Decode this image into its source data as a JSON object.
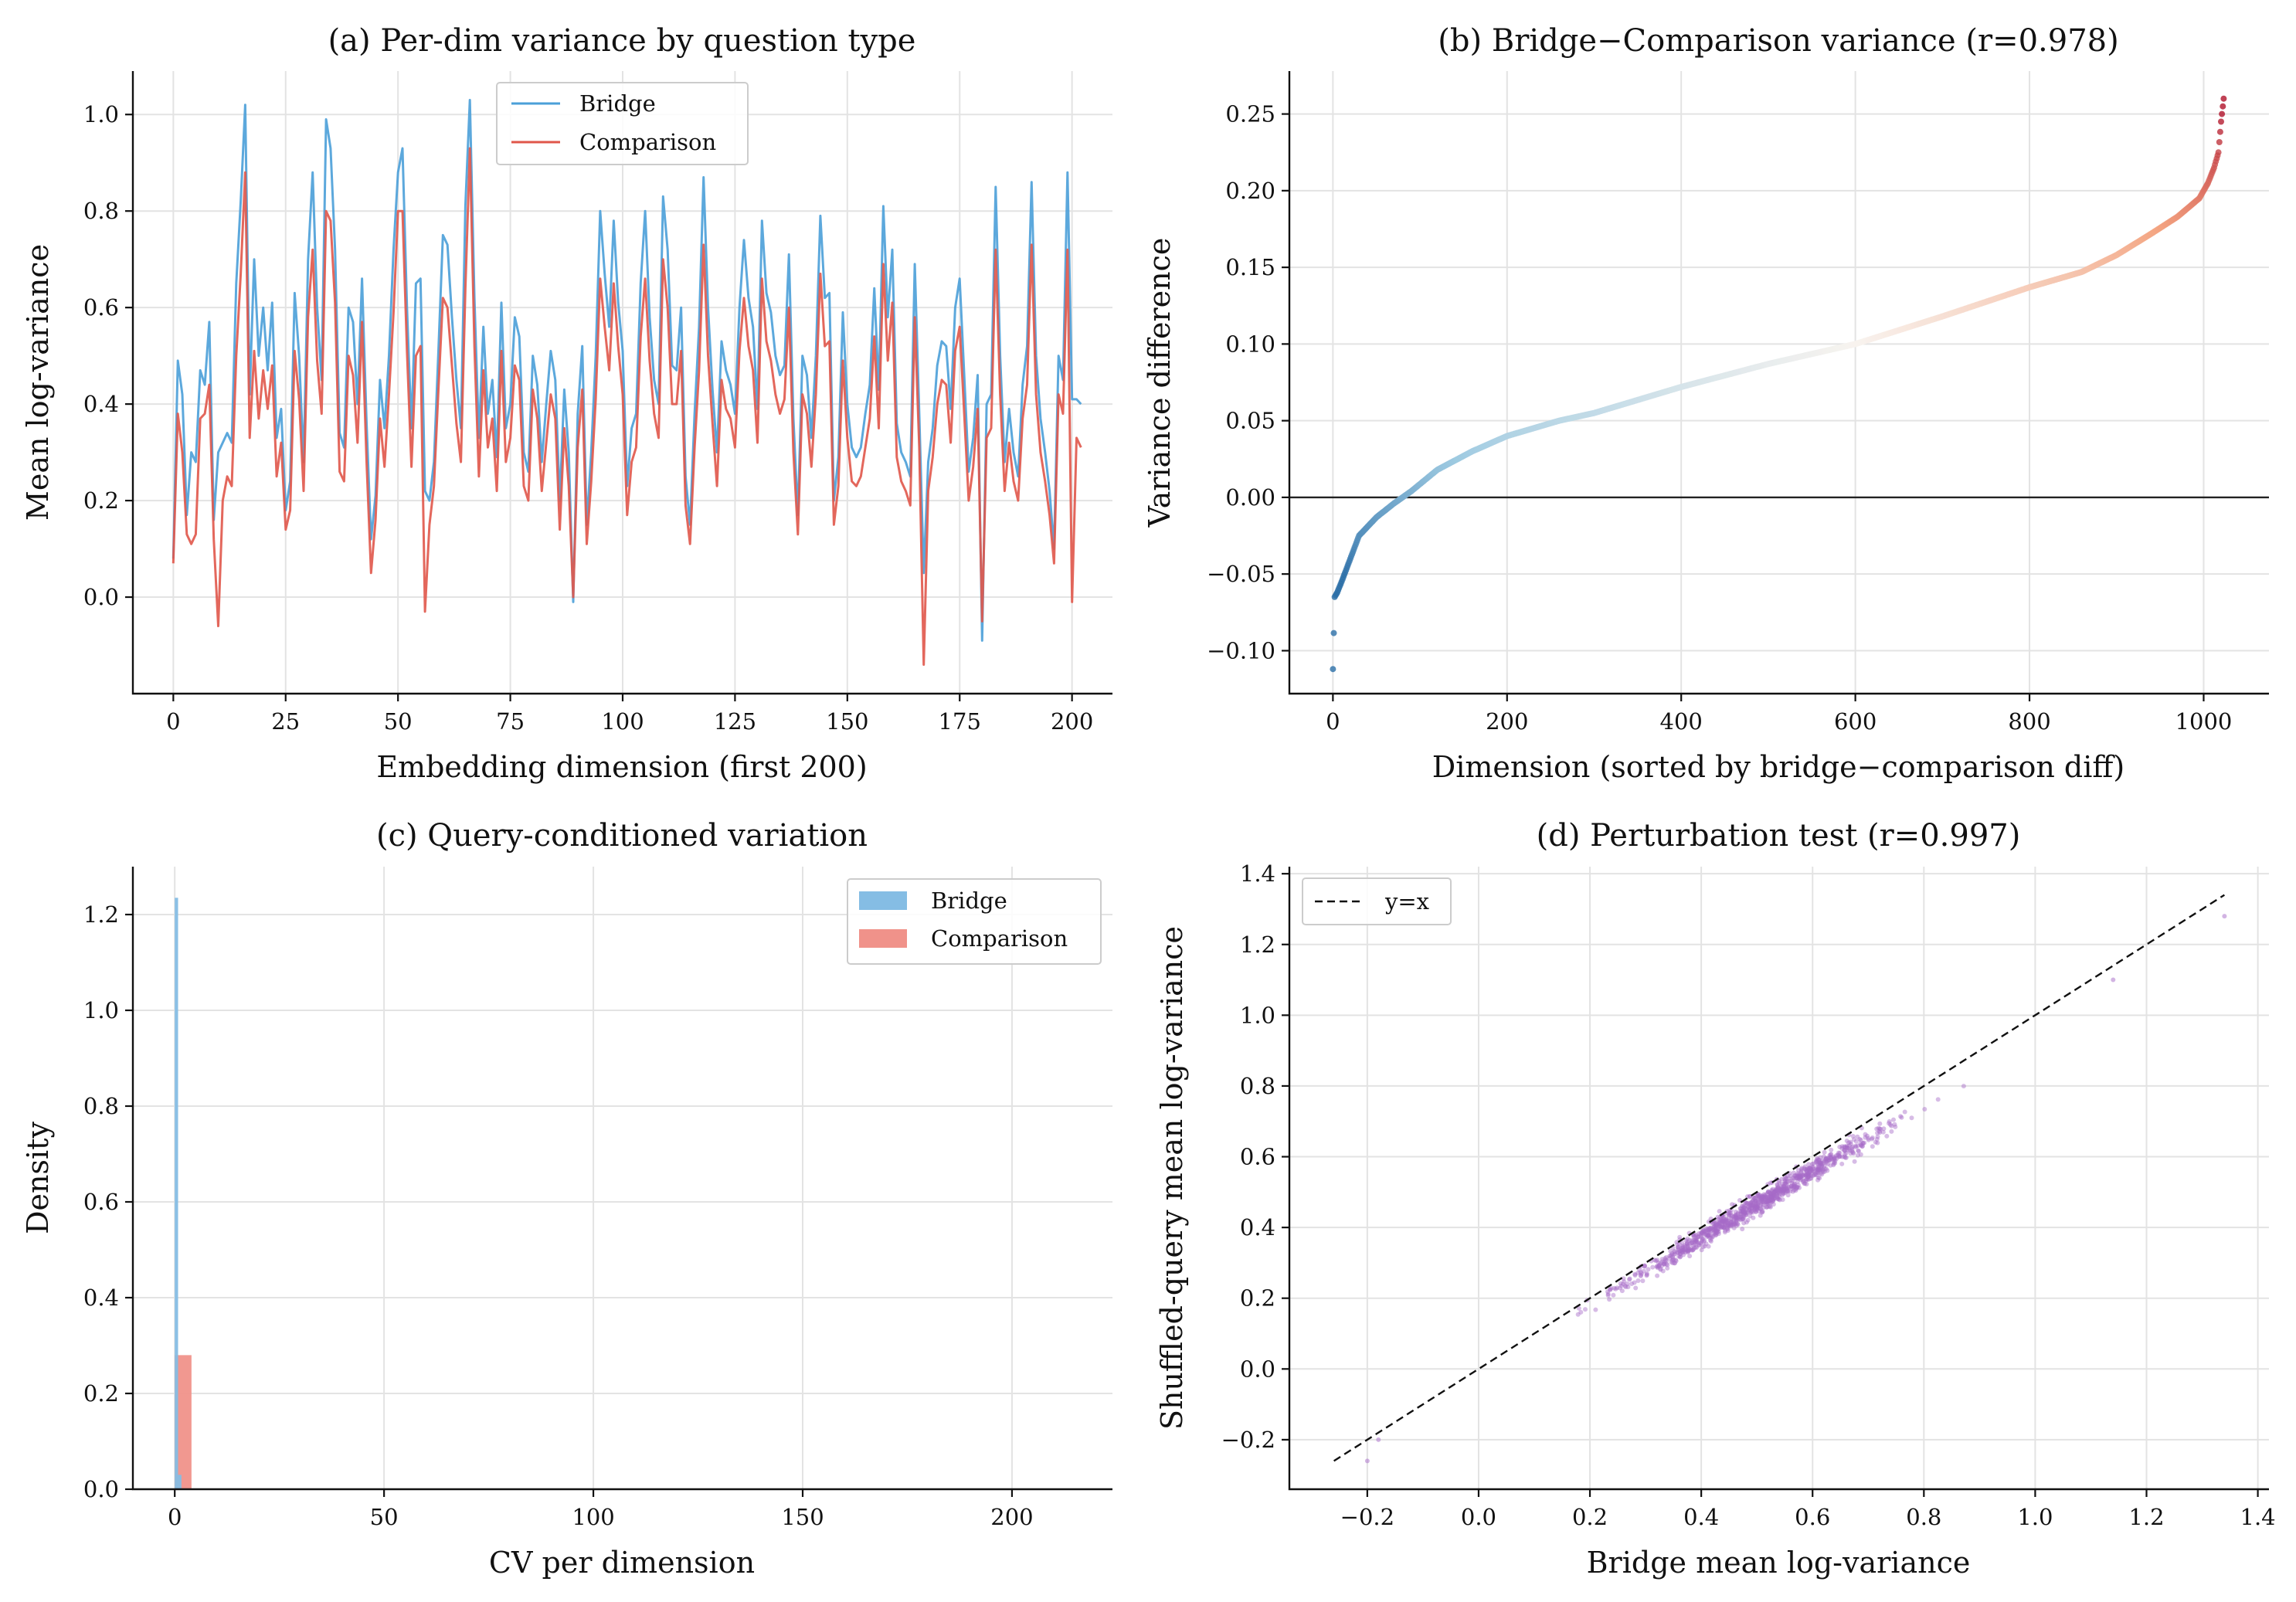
{
  "colors": {
    "bridge": "#4a9fd8",
    "comparison": "#e0564a",
    "bridge_fill": "#85bde4",
    "comparison_fill": "#f0928a",
    "scatter": "#a66ac8",
    "diverging_low": "#2c6fa8",
    "diverging_mid": "#f7f3ef",
    "diverging_high": "#b0132b"
  },
  "chart_data": [
    {
      "id": "a",
      "type": "line",
      "title": "(a) Per-dim variance by question type",
      "xlabel": "Embedding dimension (first 200)",
      "ylabel": "Mean log-variance",
      "xlim": [
        -9,
        209
      ],
      "ylim": [
        -0.2,
        1.09
      ],
      "xticks": [
        "0",
        "25",
        "50",
        "75",
        "100",
        "125",
        "150",
        "175",
        "200"
      ],
      "yticks": [
        "0.0",
        "0.2",
        "0.4",
        "0.6",
        "0.8",
        "1.0"
      ],
      "grid": true,
      "legend": {
        "position": "upper-center",
        "entries": [
          "Bridge",
          "Comparison"
        ]
      },
      "series": [
        {
          "name": "Bridge",
          "values": [
            0.08,
            0.49,
            0.42,
            0.17,
            0.3,
            0.28,
            0.47,
            0.44,
            0.57,
            0.16,
            0.3,
            0.32,
            0.34,
            0.32,
            0.65,
            0.82,
            1.02,
            0.42,
            0.7,
            0.5,
            0.6,
            0.47,
            0.61,
            0.33,
            0.39,
            0.18,
            0.24,
            0.63,
            0.5,
            0.28,
            0.7,
            0.88,
            0.6,
            0.45,
            0.99,
            0.93,
            0.72,
            0.34,
            0.31,
            0.6,
            0.57,
            0.4,
            0.66,
            0.36,
            0.12,
            0.21,
            0.45,
            0.35,
            0.5,
            0.72,
            0.88,
            0.93,
            0.6,
            0.35,
            0.65,
            0.66,
            0.22,
            0.2,
            0.28,
            0.51,
            0.75,
            0.73,
            0.58,
            0.45,
            0.35,
            0.81,
            1.03,
            0.62,
            0.33,
            0.56,
            0.38,
            0.45,
            0.29,
            0.61,
            0.35,
            0.4,
            0.58,
            0.54,
            0.3,
            0.26,
            0.5,
            0.44,
            0.28,
            0.4,
            0.51,
            0.45,
            0.2,
            0.43,
            0.3,
            -0.01,
            0.38,
            0.52,
            0.15,
            0.3,
            0.5,
            0.8,
            0.67,
            0.56,
            0.78,
            0.61,
            0.51,
            0.23,
            0.35,
            0.38,
            0.65,
            0.8,
            0.58,
            0.45,
            0.4,
            0.83,
            0.72,
            0.48,
            0.47,
            0.6,
            0.25,
            0.15,
            0.38,
            0.56,
            0.87,
            0.6,
            0.43,
            0.3,
            0.53,
            0.47,
            0.44,
            0.38,
            0.6,
            0.74,
            0.62,
            0.56,
            0.39,
            0.78,
            0.63,
            0.59,
            0.5,
            0.46,
            0.48,
            0.71,
            0.37,
            0.17,
            0.5,
            0.46,
            0.33,
            0.5,
            0.79,
            0.62,
            0.63,
            0.2,
            0.29,
            0.59,
            0.4,
            0.31,
            0.29,
            0.31,
            0.38,
            0.44,
            0.64,
            0.43,
            0.81,
            0.58,
            0.72,
            0.36,
            0.3,
            0.28,
            0.25,
            0.69,
            0.38,
            0.05,
            0.28,
            0.35,
            0.48,
            0.53,
            0.52,
            0.39,
            0.6,
            0.66,
            0.46,
            0.26,
            0.33,
            0.46,
            -0.09,
            0.4,
            0.42,
            0.85,
            0.5,
            0.28,
            0.39,
            0.3,
            0.25,
            0.44,
            0.52,
            0.86,
            0.5,
            0.37,
            0.3,
            0.22,
            0.1,
            0.5,
            0.45,
            0.88,
            0.41,
            0.41,
            0.4
          ]
        },
        {
          "name": "Comparison",
          "values": [
            0.07,
            0.38,
            0.3,
            0.13,
            0.11,
            0.13,
            0.37,
            0.38,
            0.44,
            0.12,
            -0.06,
            0.2,
            0.25,
            0.23,
            0.5,
            0.67,
            0.88,
            0.33,
            0.51,
            0.37,
            0.47,
            0.39,
            0.48,
            0.25,
            0.32,
            0.14,
            0.18,
            0.51,
            0.41,
            0.22,
            0.58,
            0.72,
            0.49,
            0.38,
            0.8,
            0.78,
            0.61,
            0.26,
            0.24,
            0.5,
            0.46,
            0.32,
            0.57,
            0.28,
            0.05,
            0.16,
            0.37,
            0.27,
            0.42,
            0.59,
            0.8,
            0.8,
            0.51,
            0.27,
            0.5,
            0.52,
            -0.03,
            0.15,
            0.23,
            0.43,
            0.62,
            0.6,
            0.48,
            0.36,
            0.28,
            0.64,
            0.93,
            0.52,
            0.25,
            0.47,
            0.31,
            0.37,
            0.22,
            0.51,
            0.28,
            0.33,
            0.48,
            0.45,
            0.23,
            0.2,
            0.43,
            0.37,
            0.22,
            0.32,
            0.42,
            0.37,
            0.14,
            0.35,
            0.23,
            0.0,
            0.31,
            0.43,
            0.11,
            0.24,
            0.41,
            0.66,
            0.56,
            0.47,
            0.65,
            0.52,
            0.42,
            0.17,
            0.28,
            0.31,
            0.54,
            0.66,
            0.49,
            0.38,
            0.33,
            0.7,
            0.6,
            0.4,
            0.4,
            0.51,
            0.19,
            0.11,
            0.31,
            0.47,
            0.73,
            0.5,
            0.36,
            0.23,
            0.45,
            0.39,
            0.37,
            0.31,
            0.51,
            0.62,
            0.52,
            0.47,
            0.32,
            0.66,
            0.53,
            0.49,
            0.42,
            0.38,
            0.41,
            0.6,
            0.3,
            0.13,
            0.42,
            0.38,
            0.27,
            0.42,
            0.67,
            0.52,
            0.53,
            0.15,
            0.23,
            0.49,
            0.33,
            0.24,
            0.23,
            0.25,
            0.31,
            0.37,
            0.54,
            0.35,
            0.69,
            0.49,
            0.61,
            0.29,
            0.24,
            0.22,
            0.19,
            0.58,
            0.31,
            -0.14,
            0.22,
            0.29,
            0.4,
            0.45,
            0.44,
            0.32,
            0.51,
            0.56,
            0.38,
            0.2,
            0.27,
            0.39,
            -0.05,
            0.33,
            0.35,
            0.72,
            0.42,
            0.22,
            0.32,
            0.24,
            0.2,
            0.37,
            0.44,
            0.73,
            0.42,
            0.3,
            0.24,
            0.17,
            0.07,
            0.42,
            0.38,
            0.72,
            -0.01,
            0.33,
            0.31
          ]
        }
      ]
    },
    {
      "id": "b",
      "type": "scatter",
      "title": "(b) Bridge−Comparison variance  (r=0.978)",
      "xlabel": "Dimension (sorted by bridge−comparison diff)",
      "ylabel": "Variance difference",
      "xlim": [
        -50,
        1075
      ],
      "ylim": [
        -0.128,
        0.278
      ],
      "xticks": [
        "0",
        "200",
        "400",
        "600",
        "800",
        "1000"
      ],
      "yticks": [
        "−0.10",
        "−0.05",
        "0.00",
        "0.05",
        "0.10",
        "0.15",
        "0.20",
        "0.25"
      ],
      "grid": true,
      "zero_line": 0,
      "n_points": 1024,
      "curve_keypoints": {
        "x": [
          0,
          2,
          5,
          10,
          20,
          30,
          50,
          70,
          90,
          120,
          160,
          200,
          260,
          300,
          400,
          500,
          600,
          700,
          800,
          860,
          900,
          940,
          970,
          995,
          1005,
          1012,
          1017,
          1020,
          1023
        ],
        "y": [
          -0.112,
          -0.065,
          -0.062,
          -0.055,
          -0.04,
          -0.025,
          -0.013,
          -0.004,
          0.004,
          0.018,
          0.03,
          0.04,
          0.05,
          0.055,
          0.072,
          0.087,
          0.1,
          0.118,
          0.137,
          0.147,
          0.158,
          0.172,
          0.183,
          0.195,
          0.205,
          0.215,
          0.225,
          0.245,
          0.26
        ]
      },
      "color_scale": {
        "min": -0.05,
        "max": 0.25,
        "colormap": "diverging blue-white-red"
      }
    },
    {
      "id": "c",
      "type": "bar",
      "title": "(c) Query-conditioned variation",
      "xlabel": "CV per dimension",
      "ylabel": "Density",
      "xlim": [
        -10,
        224
      ],
      "ylim": [
        0,
        1.3
      ],
      "xticks": [
        "0",
        "50",
        "100",
        "150",
        "200"
      ],
      "yticks": [
        "0.0",
        "0.2",
        "0.4",
        "0.6",
        "0.8",
        "1.0",
        "1.2"
      ],
      "grid": true,
      "legend": {
        "position": "upper-right",
        "entries": [
          "Bridge",
          "Comparison"
        ]
      },
      "series": [
        {
          "name": "Bridge",
          "bins": [
            [
              0,
              0.8,
              1.235
            ],
            [
              0.8,
              1.6,
              0.03
            ]
          ]
        },
        {
          "name": "Comparison",
          "bins": [
            [
              0,
              4,
              0.28
            ]
          ]
        }
      ]
    },
    {
      "id": "d",
      "type": "scatter",
      "title": "(d) Perturbation test (r=0.997)",
      "xlabel": "Bridge mean log-variance",
      "ylabel": "Shuffled-query mean log-variance",
      "xlim": [
        -0.34,
        1.42
      ],
      "ylim": [
        -0.34,
        1.42
      ],
      "xticks": [
        "−0.2",
        "0.0",
        "0.2",
        "0.4",
        "0.6",
        "0.8",
        "1.0",
        "1.2",
        "1.4"
      ],
      "yticks": [
        "−0.2",
        "0.0",
        "0.2",
        "0.4",
        "0.6",
        "0.8",
        "1.0",
        "1.2",
        "1.4"
      ],
      "grid": true,
      "legend": {
        "position": "upper-left",
        "entries": [
          "y=x"
        ]
      },
      "reference_line": {
        "name": "y=x",
        "x": [
          -0.26,
          1.34
        ],
        "y": [
          -0.26,
          1.34
        ]
      },
      "n_points": 1024,
      "fit": {
        "slope": 0.955,
        "intercept": -0.012,
        "x_range": [
          -0.22,
          1.34
        ],
        "noise": 0.025
      },
      "extremes": {
        "x": [
          -0.2,
          -0.18,
          1.14,
          1.34
        ],
        "y": [
          -0.26,
          -0.2,
          1.1,
          1.28
        ]
      }
    }
  ]
}
